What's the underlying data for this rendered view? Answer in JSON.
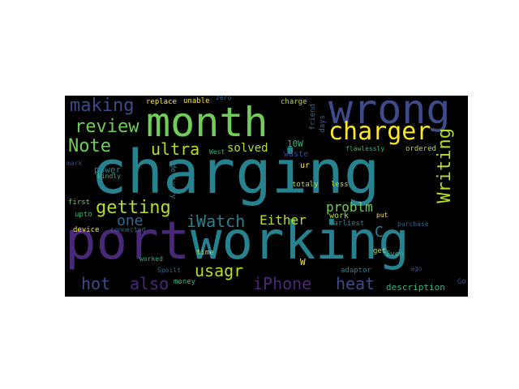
{
  "words": {
    "charging": "charging",
    "working": "working",
    "month": "month",
    "wrong": "wrong",
    "port": "port",
    "charger": "charger",
    "review": "review",
    "making": "making",
    "Note": "Note",
    "getting": "getting",
    "ultra": "ultra",
    "iWatch": "iWatch",
    "iPhone": "iPhone",
    "heat": "heat",
    "hot": "hot",
    "also": "also",
    "usagr": "usagr",
    "one": "one",
    "solved": "solved",
    "Either": "Either",
    "problm": "problm",
    "Writing": "Writing",
    "C": "C",
    "description": "description",
    "10W": "10W",
    "waste": "waste",
    "replace": "replace",
    "unable": "unable",
    "zero": "zero",
    "charge": "charge",
    "friend": "friend",
    "days": "days",
    "flawlessly": "flawlessly",
    "ordered": "ordered",
    "West": "West",
    "ur": "ur",
    "mark": "mark",
    "kindly": "kindly",
    "power": "power",
    "delivery": "delivery",
    "totaly": "totaly",
    "less": "less",
    "first": "first",
    "upto": "upto",
    "device": "device",
    "connected": "connected",
    "work": "work",
    "put": "put",
    "earliest": "earliest",
    "purchase": "purchase",
    "worked": "worked",
    "time": "time",
    "W": "W",
    "get": "get",
    "Even": "Even",
    "ago": "ago",
    "adaptor": "adaptor",
    "Spoilt": "Spoilt",
    "money": "money",
    "Go": "Go"
  },
  "colors": {
    "background": "#000000",
    "teal": "#26828e",
    "green": "#6ece58",
    "yellow": "#fde725",
    "purple": "#482878",
    "blue": "#3e4a89",
    "seafoam": "#35b779",
    "darkblue": "#31688e",
    "lightgreen": "#b5de2b"
  }
}
